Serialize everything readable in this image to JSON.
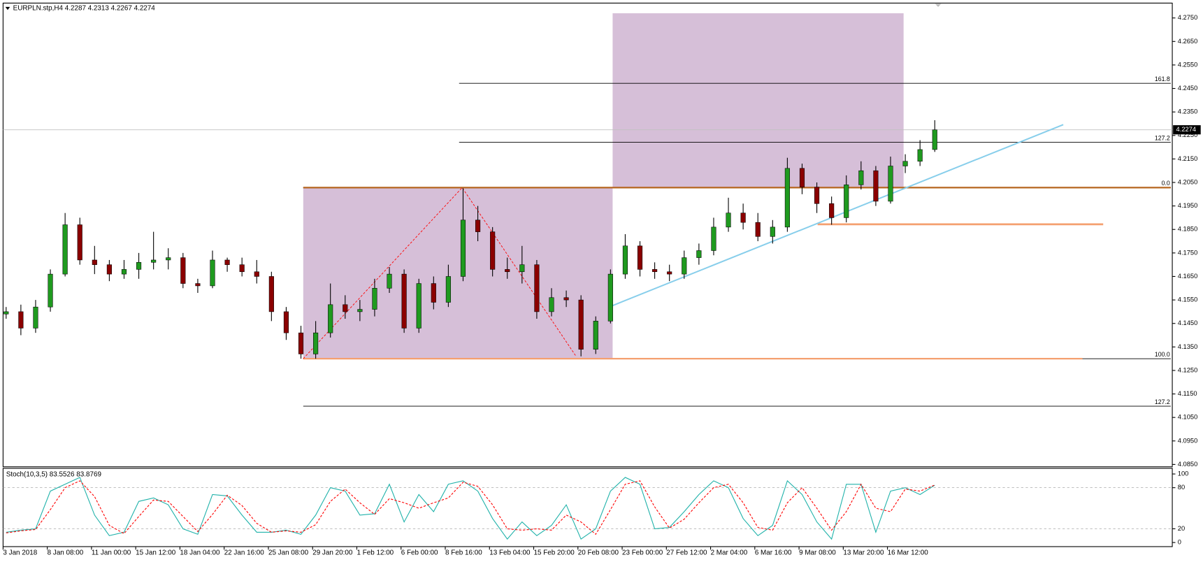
{
  "chart_data": [
    {
      "type": "candlestick",
      "title": "EURPLN.stp,H4  4.2287 4.2313 4.2267 4.2274",
      "categories": [
        "3 Jan 2018",
        null,
        null,
        "8 Jan 08:00",
        null,
        null,
        "11 Jan 00:00",
        null,
        null,
        "15 Jan 12:00",
        null,
        null,
        "18 Jan 04:00",
        null,
        null,
        "22 Jan 16:00",
        null,
        null,
        "25 Jan 08:00",
        null,
        null,
        "29 Jan 20:00",
        null,
        null,
        "1 Feb 12:00",
        null,
        null,
        "6 Feb 00:00",
        null,
        null,
        "8 Feb 16:00",
        null,
        null,
        "13 Feb 04:00",
        null,
        null,
        "15 Feb 20:00",
        null,
        null,
        "20 Feb 08:00",
        null,
        null,
        "23 Feb 00:00",
        null,
        null,
        "27 Feb 12:00",
        null,
        null,
        "2 Mar 04:00",
        null,
        null,
        "6 Mar 16:00",
        null,
        null,
        "9 Mar 08:00",
        null,
        null,
        "13 Mar 20:00",
        null,
        null,
        "16 Mar 12:00",
        null,
        null,
        null
      ],
      "open": [
        4.149,
        4.15,
        4.143,
        4.152,
        4.166,
        4.187,
        4.172,
        4.17,
        4.166,
        4.168,
        4.171,
        4.172,
        4.173,
        4.162,
        4.161,
        4.172,
        4.17,
        4.167,
        4.165,
        4.15,
        4.141,
        4.132,
        4.141,
        4.153,
        4.15,
        4.151,
        4.16,
        4.166,
        4.143,
        4.162,
        4.154,
        4.165,
        4.189,
        4.184,
        4.168,
        4.167,
        4.17,
        4.15,
        4.156,
        4.155,
        4.134,
        4.146,
        4.166,
        4.178,
        4.168,
        4.167,
        4.166,
        4.173,
        4.176,
        4.186,
        4.192,
        4.188,
        4.182,
        4.186,
        4.211,
        4.203,
        4.196,
        4.19,
        4.204,
        4.21,
        4.197,
        4.212,
        4.214,
        4.219
      ],
      "high": [
        4.152,
        4.153,
        4.155,
        4.168,
        4.192,
        4.19,
        4.178,
        4.172,
        4.172,
        4.175,
        4.184,
        4.177,
        4.175,
        4.164,
        4.176,
        4.173,
        4.173,
        4.172,
        4.167,
        4.152,
        4.144,
        4.146,
        4.162,
        4.157,
        4.155,
        4.164,
        4.169,
        4.168,
        4.164,
        4.165,
        4.17,
        4.2025,
        4.195,
        4.186,
        4.173,
        4.178,
        4.172,
        4.16,
        4.159,
        4.157,
        4.148,
        4.168,
        4.183,
        4.18,
        4.171,
        4.17,
        4.176,
        4.179,
        4.19,
        4.1985,
        4.196,
        4.192,
        4.189,
        4.2155,
        4.213,
        4.205,
        4.199,
        4.208,
        4.214,
        4.212,
        4.216,
        4.217,
        4.223,
        4.2315
      ],
      "low": [
        4.147,
        4.14,
        4.141,
        4.15,
        4.165,
        4.17,
        4.166,
        4.163,
        4.164,
        4.164,
        4.168,
        4.168,
        4.16,
        4.158,
        4.16,
        4.167,
        4.165,
        4.162,
        4.146,
        4.138,
        4.13,
        4.13,
        4.139,
        4.147,
        4.146,
        4.148,
        4.158,
        4.141,
        4.141,
        4.151,
        4.152,
        4.163,
        4.18,
        4.165,
        4.164,
        4.162,
        4.147,
        4.148,
        4.152,
        4.131,
        4.132,
        4.145,
        4.164,
        4.165,
        4.164,
        4.163,
        4.164,
        4.17,
        4.174,
        4.184,
        4.185,
        4.18,
        4.179,
        4.184,
        4.2,
        4.192,
        4.187,
        4.188,
        4.202,
        4.195,
        4.196,
        4.209,
        4.212,
        4.218
      ],
      "close": [
        4.15,
        4.143,
        4.152,
        4.166,
        4.187,
        4.172,
        4.17,
        4.166,
        4.168,
        4.171,
        4.172,
        4.173,
        4.162,
        4.161,
        4.172,
        4.17,
        4.167,
        4.165,
        4.15,
        4.141,
        4.132,
        4.141,
        4.153,
        4.15,
        4.151,
        4.16,
        4.166,
        4.143,
        4.162,
        4.154,
        4.165,
        4.189,
        4.184,
        4.168,
        4.167,
        4.17,
        4.15,
        4.156,
        4.155,
        4.134,
        4.146,
        4.166,
        4.178,
        4.168,
        4.167,
        4.166,
        4.173,
        4.176,
        4.186,
        4.192,
        4.188,
        4.182,
        4.186,
        4.211,
        4.203,
        4.196,
        4.19,
        4.204,
        4.21,
        4.197,
        4.212,
        4.214,
        4.219,
        4.2274
      ],
      "up_color": "#1f9a1f",
      "down_color": "#8b0000",
      "ylim": [
        4.084,
        4.281
      ],
      "yticks": [
        {
          "value": 4.085,
          "label": "4.0850"
        },
        {
          "value": 4.095,
          "label": "4.0950"
        },
        {
          "value": 4.105,
          "label": "4.1050"
        },
        {
          "value": 4.115,
          "label": "4.1150"
        },
        {
          "value": 4.125,
          "label": "4.1250"
        },
        {
          "value": 4.135,
          "label": "4.1350"
        },
        {
          "value": 4.145,
          "label": "4.1450"
        },
        {
          "value": 4.155,
          "label": "4.1550"
        },
        {
          "value": 4.165,
          "label": "4.1650"
        },
        {
          "value": 4.175,
          "label": "4.1750"
        },
        {
          "value": 4.185,
          "label": "4.1850"
        },
        {
          "value": 4.195,
          "label": "4.1950"
        },
        {
          "value": 4.205,
          "label": "4.2050"
        },
        {
          "value": 4.215,
          "label": "4.2150"
        },
        {
          "value": 4.225,
          "label": "4.2250"
        },
        {
          "value": 4.235,
          "label": "4.2350"
        },
        {
          "value": 4.245,
          "label": "4.2450"
        },
        {
          "value": 4.255,
          "label": "4.2550"
        },
        {
          "value": 4.265,
          "label": "4.2650"
        },
        {
          "value": 4.275,
          "label": "4.2750"
        }
      ],
      "last_price": 4.2274,
      "zones": [
        {
          "bottom": 4.13,
          "top": 4.2028
        },
        {
          "bottom": 4.2028,
          "top": 4.277
        }
      ],
      "zone_color": "#d6bfd8",
      "fibo": [
        {
          "label": "161.8",
          "value": 4.2472,
          "color": "#000000"
        },
        {
          "label": "127.2",
          "value": 4.2221,
          "color": "#000000"
        },
        {
          "label": "0.0",
          "value": 4.2028,
          "color": "#b5651d"
        },
        {
          "label": "100.0",
          "value": 4.13,
          "color": "#f4a070"
        },
        {
          "label": "127.2",
          "value": 4.1098,
          "color": "#000000"
        }
      ],
      "level_line": 4.1872,
      "level_color": "#f4a070",
      "trend_line": [
        4.1526,
        4.2296
      ],
      "trend_color": "#87ceeb",
      "zigzag": [
        4.13,
        4.2028,
        4.1312
      ],
      "zigzag_color": "#ff0000"
    },
    {
      "type": "line",
      "title": "Stoch(10,3,5) 83.5526 83.8769",
      "series": [
        {
          "color": "#20b2aa",
          "values": [
            15,
            18,
            20,
            75,
            85,
            95,
            40,
            10,
            15,
            60,
            65,
            55,
            20,
            12,
            70,
            68,
            40,
            15,
            15,
            18,
            12,
            40,
            80,
            75,
            40,
            42,
            85,
            30,
            70,
            45,
            85,
            90,
            75,
            35,
            5,
            30,
            10,
            25,
            55,
            5,
            20,
            75,
            95,
            85,
            20,
            22,
            45,
            70,
            90,
            80,
            35,
            10,
            25,
            90,
            70,
            30,
            5,
            85,
            85,
            15,
            75,
            80,
            70,
            83.5526
          ]
        },
        {
          "color": "#ff0000",
          "values": [
            14,
            17,
            19,
            48,
            80,
            90,
            67,
            25,
            13,
            38,
            62,
            60,
            38,
            16,
            41,
            69,
            54,
            28,
            15,
            17,
            15,
            26,
            60,
            78,
            58,
            41,
            64,
            58,
            50,
            58,
            65,
            88,
            82,
            55,
            20,
            18,
            20,
            18,
            40,
            30,
            12,
            48,
            85,
            90,
            52,
            21,
            34,
            58,
            80,
            85,
            58,
            22,
            18,
            58,
            80,
            50,
            18,
            45,
            85,
            50,
            45,
            78,
            75,
            83.8769
          ]
        }
      ],
      "ylim": [
        -6,
        106
      ],
      "yticks": [
        0,
        20,
        80,
        100
      ],
      "levels": [
        20,
        80
      ]
    }
  ]
}
